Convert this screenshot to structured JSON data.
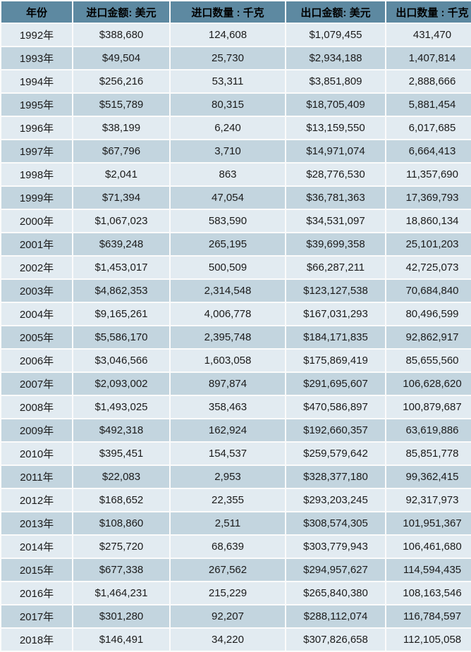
{
  "table": {
    "columns": [
      {
        "id": "year",
        "label": "年份"
      },
      {
        "id": "import-amount",
        "label": "进口金额: 美元"
      },
      {
        "id": "import-quantity",
        "label": "进口数量 : 千克"
      },
      {
        "id": "export-amount",
        "label": "出口金额: 美元"
      },
      {
        "id": "export-quantity",
        "label": "出口数量 : 千克"
      }
    ],
    "rows": [
      [
        "1992年",
        "$388,680",
        "124,608",
        "$1,079,455",
        "431,470"
      ],
      [
        "1993年",
        "$49,504",
        "25,730",
        "$2,934,188",
        "1,407,814"
      ],
      [
        "1994年",
        "$256,216",
        "53,311",
        "$3,851,809",
        "2,888,666"
      ],
      [
        "1995年",
        "$515,789",
        "80,315",
        "$18,705,409",
        "5,881,454"
      ],
      [
        "1996年",
        "$38,199",
        "6,240",
        "$13,159,550",
        "6,017,685"
      ],
      [
        "1997年",
        "$67,796",
        "3,710",
        "$14,971,074",
        "6,664,413"
      ],
      [
        "1998年",
        "$2,041",
        "863",
        "$28,776,530",
        "11,357,690"
      ],
      [
        "1999年",
        "$71,394",
        "47,054",
        "$36,781,363",
        "17,369,793"
      ],
      [
        "2000年",
        "$1,067,023",
        "583,590",
        "$34,531,097",
        "18,860,134"
      ],
      [
        "2001年",
        "$639,248",
        "265,195",
        "$39,699,358",
        "25,101,203"
      ],
      [
        "2002年",
        "$1,453,017",
        "500,509",
        "$66,287,211",
        "42,725,073"
      ],
      [
        "2003年",
        "$4,862,353",
        "2,314,548",
        "$123,127,538",
        "70,684,840"
      ],
      [
        "2004年",
        "$9,165,261",
        "4,006,778",
        "$167,031,293",
        "80,496,599"
      ],
      [
        "2005年",
        "$5,586,170",
        "2,395,748",
        "$184,171,835",
        "92,862,917"
      ],
      [
        "2006年",
        "$3,046,566",
        "1,603,058",
        "$175,869,419",
        "85,655,560"
      ],
      [
        "2007年",
        "$2,093,002",
        "897,874",
        "$291,695,607",
        "106,628,620"
      ],
      [
        "2008年",
        "$1,493,025",
        "358,463",
        "$470,586,897",
        "100,879,687"
      ],
      [
        "2009年",
        "$492,318",
        "162,924",
        "$192,660,357",
        "63,619,886"
      ],
      [
        "2010年",
        "$395,451",
        "154,537",
        "$259,579,642",
        "85,851,778"
      ],
      [
        "2011年",
        "$22,083",
        "2,953",
        "$328,377,180",
        "99,362,415"
      ],
      [
        "2012年",
        "$168,652",
        "22,355",
        "$293,203,245",
        "92,317,973"
      ],
      [
        "2013年",
        "$108,860",
        "2,511",
        "$308,574,305",
        "101,951,367"
      ],
      [
        "2014年",
        "$275,720",
        "68,639",
        "$303,779,943",
        "106,461,680"
      ],
      [
        "2015年",
        "$677,338",
        "267,562",
        "$294,957,627",
        "114,594,435"
      ],
      [
        "2016年",
        "$1,464,231",
        "215,229",
        "$265,840,380",
        "108,163,546"
      ],
      [
        "2017年",
        "$301,280",
        "92,207",
        "$288,112,074",
        "116,784,597"
      ],
      [
        "2018年",
        "$146,491",
        "34,220",
        "$307,826,658",
        "112,105,058"
      ]
    ]
  },
  "chart_data": {
    "type": "table",
    "title": "",
    "categories": [
      1992,
      1993,
      1994,
      1995,
      1996,
      1997,
      1998,
      1999,
      2000,
      2001,
      2002,
      2003,
      2004,
      2005,
      2006,
      2007,
      2008,
      2009,
      2010,
      2011,
      2012,
      2013,
      2014,
      2015,
      2016,
      2017,
      2018
    ],
    "series": [
      {
        "name": "进口金额(美元)",
        "values": [
          388680,
          49504,
          256216,
          515789,
          38199,
          67796,
          2041,
          71394,
          1067023,
          639248,
          1453017,
          4862353,
          9165261,
          5586170,
          3046566,
          2093002,
          1493025,
          492318,
          395451,
          22083,
          168652,
          108860,
          275720,
          677338,
          1464231,
          301280,
          146491
        ]
      },
      {
        "name": "进口数量(千克)",
        "values": [
          124608,
          25730,
          53311,
          80315,
          6240,
          3710,
          863,
          47054,
          583590,
          265195,
          500509,
          2314548,
          4006778,
          2395748,
          1603058,
          897874,
          358463,
          162924,
          154537,
          2953,
          22355,
          2511,
          68639,
          267562,
          215229,
          92207,
          34220
        ]
      },
      {
        "name": "出口金额(美元)",
        "values": [
          1079455,
          2934188,
          3851809,
          18705409,
          13159550,
          14971074,
          28776530,
          36781363,
          34531097,
          39699358,
          66287211,
          123127538,
          167031293,
          184171835,
          175869419,
          291695607,
          470586897,
          192660357,
          259579642,
          328377180,
          293203245,
          308574305,
          303779943,
          294957627,
          265840380,
          288112074,
          307826658
        ]
      },
      {
        "name": "出口数量(千克)",
        "values": [
          431470,
          1407814,
          2888666,
          5881454,
          6017685,
          6664413,
          11357690,
          17369793,
          18860134,
          25101203,
          42725073,
          70684840,
          80496599,
          92862917,
          85655560,
          106628620,
          100879687,
          63619886,
          85851778,
          99362415,
          92317973,
          101951367,
          106461680,
          114594435,
          108163546,
          116784597,
          112105058
        ]
      }
    ],
    "layout_hints": {
      "striped_rows": true,
      "first_data_row_shade": "light",
      "grid": "white 2px gaps"
    }
  },
  "colors": {
    "header_bg": "#5d89a1",
    "row_light": "#e2ebf1",
    "row_dark": "#c3d5df",
    "gap": "#fbfbfb",
    "text": "#1b1b1b",
    "header_text": "#000000"
  }
}
